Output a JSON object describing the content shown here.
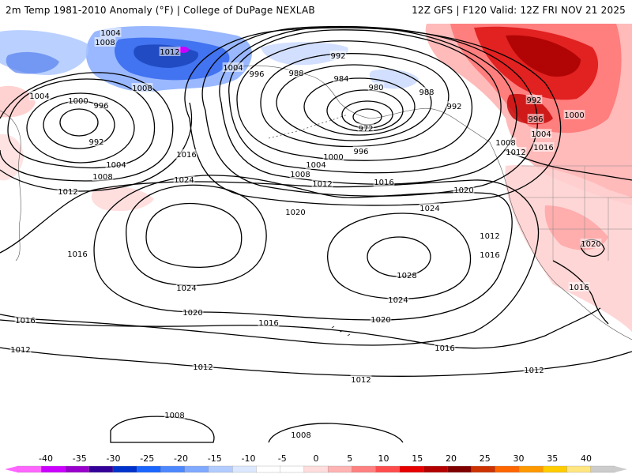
{
  "header": {
    "title_left": "2m Temp 1981-2010 Anomaly (°F) | College of DuPage NEXLAB",
    "title_right": "12Z GFS | F120 Valid: 12Z FRI NOV 21 2025"
  },
  "map": {
    "region": "North Pacific Ocean and western North America",
    "field_shaded": "2m temperature anomaly",
    "field_contoured": "mean sea level pressure",
    "isobar_labels": [
      {
        "id": "iso-1004-a",
        "text": "1004"
      },
      {
        "id": "iso-1008-a",
        "text": "1008"
      },
      {
        "id": "iso-1012-a",
        "text": "1012"
      },
      {
        "id": "iso-1004-b",
        "text": "1004"
      },
      {
        "id": "iso-996-a",
        "text": "996"
      },
      {
        "id": "iso-992-a",
        "text": "992"
      },
      {
        "id": "iso-988-a",
        "text": "988"
      },
      {
        "id": "iso-984",
        "text": "984"
      },
      {
        "id": "iso-980",
        "text": "980"
      },
      {
        "id": "iso-988-b",
        "text": "988"
      },
      {
        "id": "iso-992-b",
        "text": "992"
      },
      {
        "id": "iso-972",
        "text": "972"
      },
      {
        "id": "iso-1008-b",
        "text": "1008"
      },
      {
        "id": "iso-1004-c",
        "text": "1004"
      },
      {
        "id": "iso-1000-a",
        "text": "1000"
      },
      {
        "id": "iso-996-b",
        "text": "996"
      },
      {
        "id": "iso-992-c",
        "text": "992"
      },
      {
        "id": "iso-1004-d",
        "text": "1004"
      },
      {
        "id": "iso-1008-c",
        "text": "1008"
      },
      {
        "id": "iso-1012-b",
        "text": "1012"
      },
      {
        "id": "iso-1016-a",
        "text": "1016"
      },
      {
        "id": "iso-1024-a",
        "text": "1024"
      },
      {
        "id": "iso-996-c",
        "text": "996"
      },
      {
        "id": "iso-1000-b",
        "text": "1000"
      },
      {
        "id": "iso-1004-e",
        "text": "1004"
      },
      {
        "id": "iso-1008-d",
        "text": "1008"
      },
      {
        "id": "iso-1012-c",
        "text": "1012"
      },
      {
        "id": "iso-1016-b",
        "text": "1016"
      },
      {
        "id": "iso-1020-a",
        "text": "1020"
      },
      {
        "id": "iso-1024-b",
        "text": "1024"
      },
      {
        "id": "iso-1020-b",
        "text": "1020"
      },
      {
        "id": "iso-1016-c",
        "text": "1016"
      },
      {
        "id": "iso-1028",
        "text": "1028"
      },
      {
        "id": "iso-1024-c",
        "text": "1024"
      },
      {
        "id": "iso-1020-c",
        "text": "1020"
      },
      {
        "id": "iso-1024-d",
        "text": "1024"
      },
      {
        "id": "iso-1020-d",
        "text": "1020"
      },
      {
        "id": "iso-1016-d",
        "text": "1016"
      },
      {
        "id": "iso-1012-d",
        "text": "1012"
      },
      {
        "id": "iso-1016-e",
        "text": "1016"
      },
      {
        "id": "iso-1016-f",
        "text": "1016"
      },
      {
        "id": "iso-1012-e",
        "text": "1012"
      },
      {
        "id": "iso-1012-f",
        "text": "1012"
      },
      {
        "id": "iso-1012-g",
        "text": "1012"
      },
      {
        "id": "iso-1016-g",
        "text": "1016"
      },
      {
        "id": "iso-1012-h",
        "text": "1012"
      },
      {
        "id": "iso-1008-e",
        "text": "1008"
      },
      {
        "id": "iso-1008-f",
        "text": "1008"
      },
      {
        "id": "iso-992-d",
        "text": "992"
      },
      {
        "id": "iso-996-d",
        "text": "996"
      },
      {
        "id": "iso-1000-c",
        "text": "1000"
      },
      {
        "id": "iso-1004-f",
        "text": "1004"
      },
      {
        "id": "iso-1008-g",
        "text": "1008"
      },
      {
        "id": "iso-1012-i",
        "text": "1012"
      },
      {
        "id": "iso-1016-h",
        "text": "1016"
      },
      {
        "id": "iso-1020-e",
        "text": "1020"
      },
      {
        "id": "iso-1016-i",
        "text": "1016"
      }
    ]
  },
  "legend": {
    "ticks": [
      "-40",
      "-35",
      "-30",
      "-25",
      "-20",
      "-15",
      "-10",
      "-5",
      "0",
      "5",
      "10",
      "15",
      "20",
      "25",
      "30",
      "35",
      "40"
    ],
    "colors": [
      "#ff66ff",
      "#cc00ff",
      "#9900cc",
      "#330099",
      "#0033cc",
      "#1a66ff",
      "#4d88ff",
      "#80aaff",
      "#b3ccff",
      "#dce8ff",
      "#ffffff",
      "#ffffff",
      "#ffdddd",
      "#ffb3b3",
      "#ff8080",
      "#ff4d4d",
      "#e60000",
      "#b30000",
      "#800000",
      "#cc3300",
      "#ff6600",
      "#ff9900",
      "#ffcc00",
      "#ffe680",
      "#cccccc"
    ]
  }
}
